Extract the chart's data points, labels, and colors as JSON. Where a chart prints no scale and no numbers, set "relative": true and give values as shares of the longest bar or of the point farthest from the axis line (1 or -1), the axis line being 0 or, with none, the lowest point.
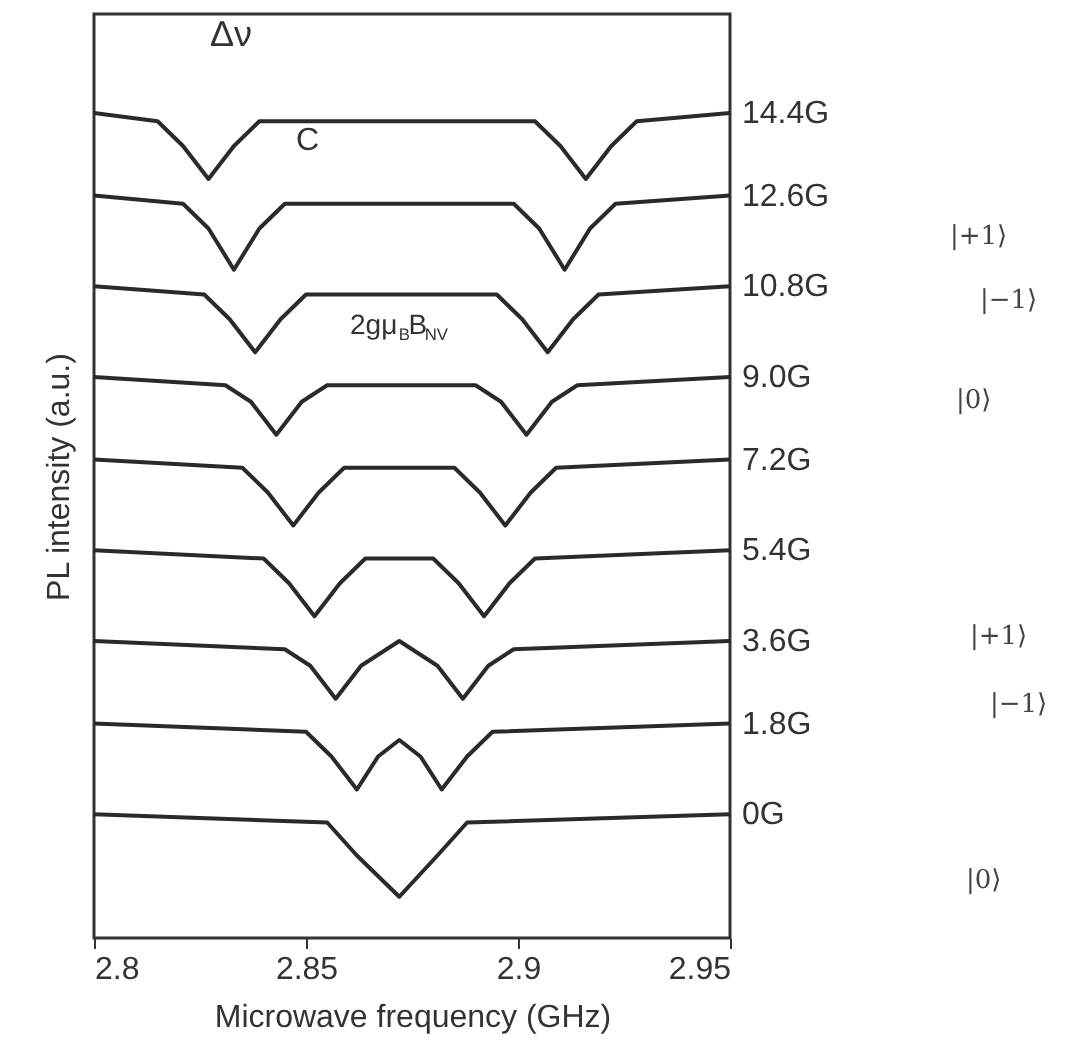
{
  "chart_data": {
    "type": "line",
    "relative": true,
    "xlabel": "Microwave frequency (GHz)",
    "ylabel": "PL intensity (a.u.)",
    "xlim": [
      2.8,
      2.95
    ],
    "xticks": [
      2.8,
      2.85,
      2.9,
      2.95
    ],
    "tick_labels": "x",
    "grid": false,
    "marker": "none",
    "line_style": "solid",
    "series": [
      {
        "name": "14.4G",
        "color": "#2a2a2a",
        "x": [
          2.8,
          2.815,
          2.821,
          2.827,
          2.833,
          2.839,
          2.904,
          2.91,
          2.916,
          2.922,
          2.928,
          2.95
        ],
        "values": [
          1.0,
          0.99,
          0.96,
          0.92,
          0.96,
          0.99,
          0.99,
          0.96,
          0.92,
          0.96,
          0.99,
          1.0
        ]
      },
      {
        "name": "12.6G",
        "color": "#2a2a2a",
        "x": [
          2.8,
          2.821,
          2.827,
          2.833,
          2.839,
          2.845,
          2.899,
          2.905,
          2.911,
          2.917,
          2.923,
          2.95
        ],
        "values": [
          0.9,
          0.89,
          0.86,
          0.81,
          0.86,
          0.89,
          0.89,
          0.86,
          0.81,
          0.86,
          0.89,
          0.9
        ]
      },
      {
        "name": "10.8G",
        "color": "#2a2a2a",
        "x": [
          2.8,
          2.826,
          2.832,
          2.838,
          2.844,
          2.85,
          2.895,
          2.901,
          2.907,
          2.913,
          2.919,
          2.95
        ],
        "values": [
          0.79,
          0.78,
          0.75,
          0.71,
          0.75,
          0.78,
          0.78,
          0.75,
          0.71,
          0.75,
          0.78,
          0.79
        ]
      },
      {
        "name": "9.0G",
        "color": "#2a2a2a",
        "x": [
          2.8,
          2.831,
          2.837,
          2.843,
          2.849,
          2.855,
          2.89,
          2.896,
          2.902,
          2.908,
          2.914,
          2.95
        ],
        "values": [
          0.68,
          0.67,
          0.65,
          0.61,
          0.65,
          0.67,
          0.67,
          0.65,
          0.61,
          0.65,
          0.67,
          0.68
        ]
      },
      {
        "name": "7.2G",
        "color": "#2a2a2a",
        "x": [
          2.8,
          2.835,
          2.841,
          2.847,
          2.853,
          2.859,
          2.885,
          2.891,
          2.897,
          2.903,
          2.909,
          2.95
        ],
        "values": [
          0.58,
          0.57,
          0.54,
          0.5,
          0.54,
          0.57,
          0.57,
          0.54,
          0.5,
          0.54,
          0.57,
          0.58
        ]
      },
      {
        "name": "5.4G",
        "color": "#2a2a2a",
        "x": [
          2.8,
          2.84,
          2.846,
          2.852,
          2.858,
          2.864,
          2.88,
          2.886,
          2.892,
          2.898,
          2.904,
          2.95
        ],
        "values": [
          0.47,
          0.46,
          0.43,
          0.39,
          0.43,
          0.46,
          0.46,
          0.43,
          0.39,
          0.43,
          0.46,
          0.47
        ]
      },
      {
        "name": "3.6G",
        "color": "#2a2a2a",
        "x": [
          2.8,
          2.845,
          2.851,
          2.857,
          2.863,
          2.872,
          2.881,
          2.887,
          2.893,
          2.899,
          2.95
        ],
        "values": [
          0.36,
          0.35,
          0.33,
          0.29,
          0.33,
          0.36,
          0.33,
          0.29,
          0.33,
          0.35,
          0.36
        ]
      },
      {
        "name": "1.8G",
        "color": "#2a2a2a",
        "x": [
          2.8,
          2.85,
          2.856,
          2.862,
          2.867,
          2.872,
          2.877,
          2.882,
          2.888,
          2.894,
          2.95
        ],
        "values": [
          0.26,
          0.25,
          0.22,
          0.18,
          0.22,
          0.24,
          0.22,
          0.18,
          0.22,
          0.25,
          0.26
        ]
      },
      {
        "name": "0G",
        "color": "#2a2a2a",
        "x": [
          2.8,
          2.855,
          2.862,
          2.872,
          2.881,
          2.888,
          2.95
        ],
        "values": [
          0.15,
          0.14,
          0.1,
          0.05,
          0.1,
          0.14,
          0.15
        ]
      }
    ],
    "annotations": [
      "Δν",
      "C",
      "2gμ$_{B}$B$_{NV}$",
      "|+1⟩",
      "|−1⟩",
      "|0⟩",
      "|+1⟩",
      "|−1⟩",
      "|0⟩"
    ]
  }
}
